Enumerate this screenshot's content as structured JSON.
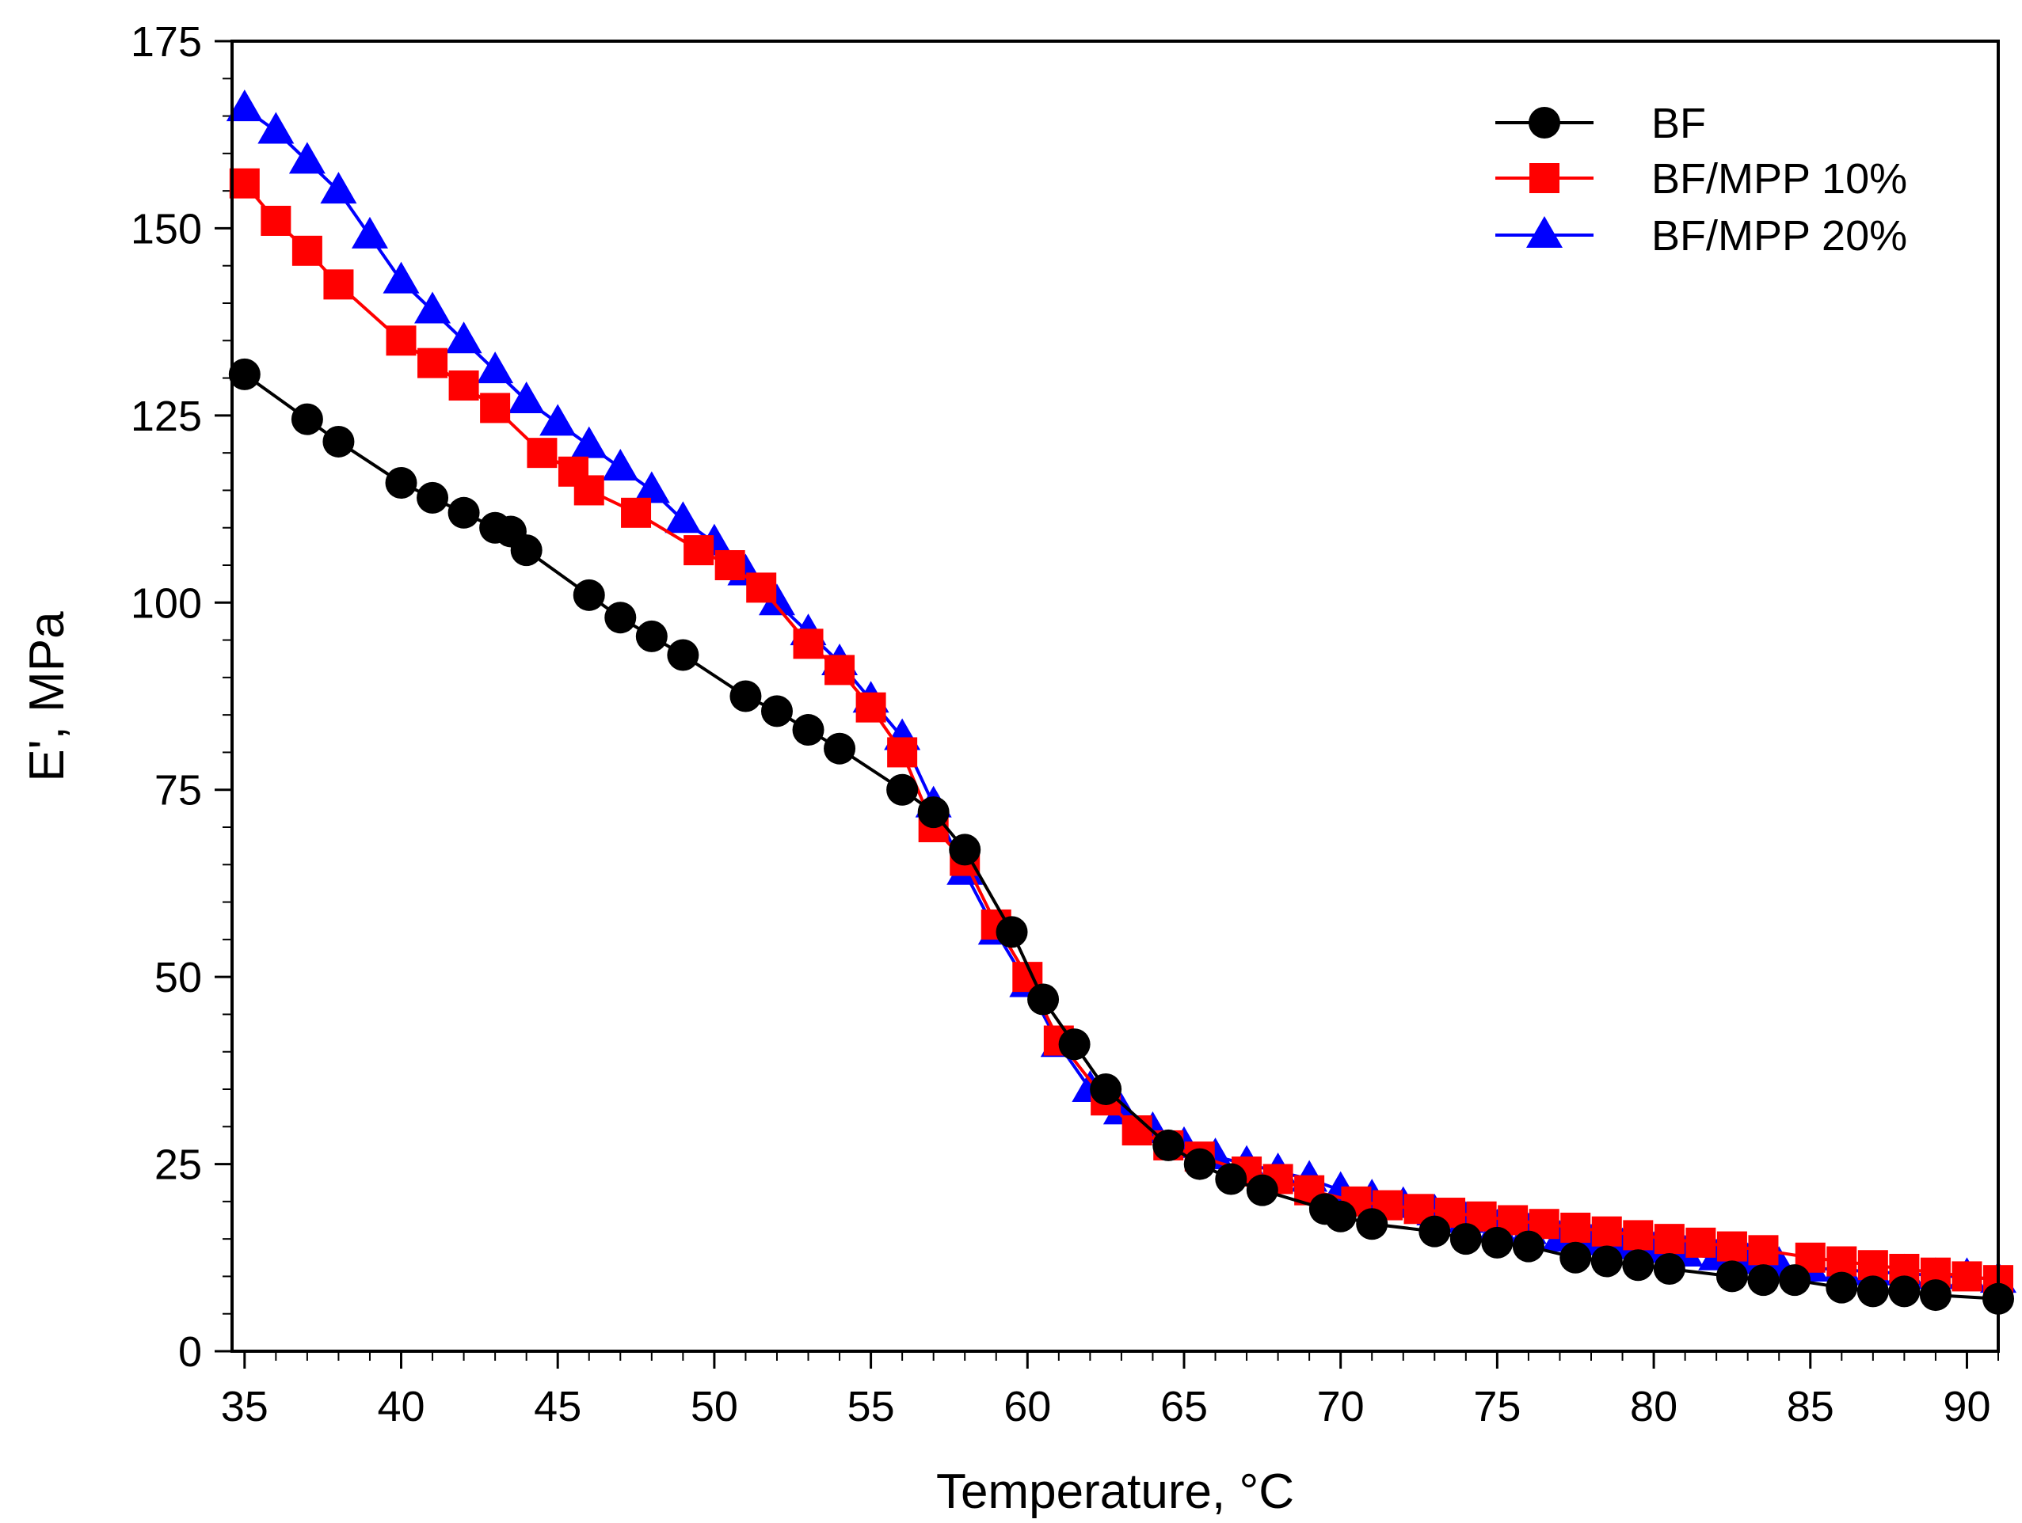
{
  "chart_data": {
    "type": "line",
    "title": "",
    "xlabel": "Temperature, °C",
    "ylabel": "E', MPa",
    "xlim": [
      34.6,
      91
    ],
    "ylim": [
      0,
      175
    ],
    "xticks": [
      "35",
      "40",
      "45",
      "50",
      "55",
      "60",
      "65",
      "70",
      "75",
      "80",
      "85",
      "90"
    ],
    "yticks": [
      "0",
      "25",
      "50",
      "75",
      "100",
      "125",
      "150",
      "175"
    ],
    "legend_position": "top-right",
    "series": [
      {
        "name": "BF",
        "color": "#000000",
        "marker": "circle",
        "x": [
          35,
          37,
          38,
          40,
          41,
          42,
          43,
          43.5,
          44,
          46,
          47,
          48,
          49,
          51,
          52,
          53,
          54,
          56,
          57,
          58,
          59.5,
          60.5,
          61.5,
          62.5,
          64.5,
          65.5,
          66.5,
          67.5,
          69.5,
          70,
          71,
          73,
          74,
          75,
          76,
          77.5,
          78.5,
          79.5,
          80.5,
          82.5,
          83.5,
          84.5,
          86,
          87,
          88,
          89,
          91
        ],
        "y": [
          130.5,
          124.5,
          121.5,
          116,
          114,
          112,
          110,
          109.5,
          107,
          101,
          98,
          95.5,
          93,
          87.5,
          85.5,
          83,
          80.5,
          75,
          72,
          67,
          56,
          47,
          41,
          35,
          27.5,
          25,
          23,
          21.5,
          19,
          18,
          17,
          16,
          15,
          14.5,
          14,
          12.5,
          12,
          11.5,
          11,
          10,
          9.5,
          9.5,
          8.5,
          8,
          8,
          7.5,
          7
        ]
      },
      {
        "name": "BF/MPP 10%",
        "color": "#ff0000",
        "marker": "square",
        "x": [
          35,
          36,
          37,
          38,
          40,
          41,
          42,
          43,
          44.5,
          45.5,
          46,
          47.5,
          49.5,
          50.5,
          51.5,
          53,
          54,
          55,
          56,
          57,
          58,
          59,
          60,
          61,
          62.5,
          63.5,
          64.5,
          65.5,
          67,
          68,
          69,
          70.5,
          71.5,
          72.5,
          73.5,
          74.5,
          75.5,
          76.5,
          77.5,
          78.5,
          79.5,
          80.5,
          81.5,
          82.5,
          83.5,
          85,
          86,
          87,
          88,
          89,
          90,
          91
        ],
        "y": [
          156,
          151,
          147,
          142.5,
          135,
          132,
          129,
          126,
          120,
          117.5,
          115,
          112,
          107,
          105,
          102,
          94.5,
          91,
          86,
          80,
          70,
          65.5,
          57,
          50,
          41.5,
          33.5,
          29.5,
          27.5,
          26,
          24,
          23,
          21.5,
          20,
          19.5,
          19,
          18.5,
          18,
          17.5,
          17,
          16.5,
          16,
          15.5,
          15,
          14.5,
          14,
          13.5,
          12.5,
          12,
          11.5,
          11,
          10.5,
          10,
          9.5
        ]
      },
      {
        "name": "BF/MPP 20%",
        "color": "#0000ff",
        "marker": "triangle",
        "x": [
          35,
          36,
          37,
          38,
          39,
          40,
          41,
          42,
          43,
          44,
          45,
          46,
          47,
          48,
          49,
          50,
          51,
          52,
          53,
          54,
          55,
          56,
          57,
          58,
          59,
          60,
          61,
          62,
          63,
          64,
          65,
          66,
          67,
          68,
          69,
          70,
          71,
          72,
          73,
          74,
          75,
          76,
          77,
          78,
          79,
          80,
          81,
          82,
          83,
          84,
          85,
          86,
          87,
          88,
          89,
          90,
          91
        ],
        "y": [
          166,
          163,
          159,
          155,
          149,
          143,
          139,
          135,
          131,
          127,
          124,
          121,
          118,
          115,
          111,
          108,
          104,
          100,
          96,
          92,
          87,
          82,
          73,
          64,
          56,
          49,
          41,
          35,
          32,
          29.5,
          27.5,
          26,
          25,
          24,
          23,
          21.5,
          20.5,
          19.5,
          18.5,
          17.5,
          16.5,
          16,
          15,
          14.5,
          14,
          13.5,
          13,
          12.5,
          12,
          11.5,
          11,
          11,
          10.5,
          10.5,
          10,
          10,
          9.5
        ]
      }
    ]
  }
}
